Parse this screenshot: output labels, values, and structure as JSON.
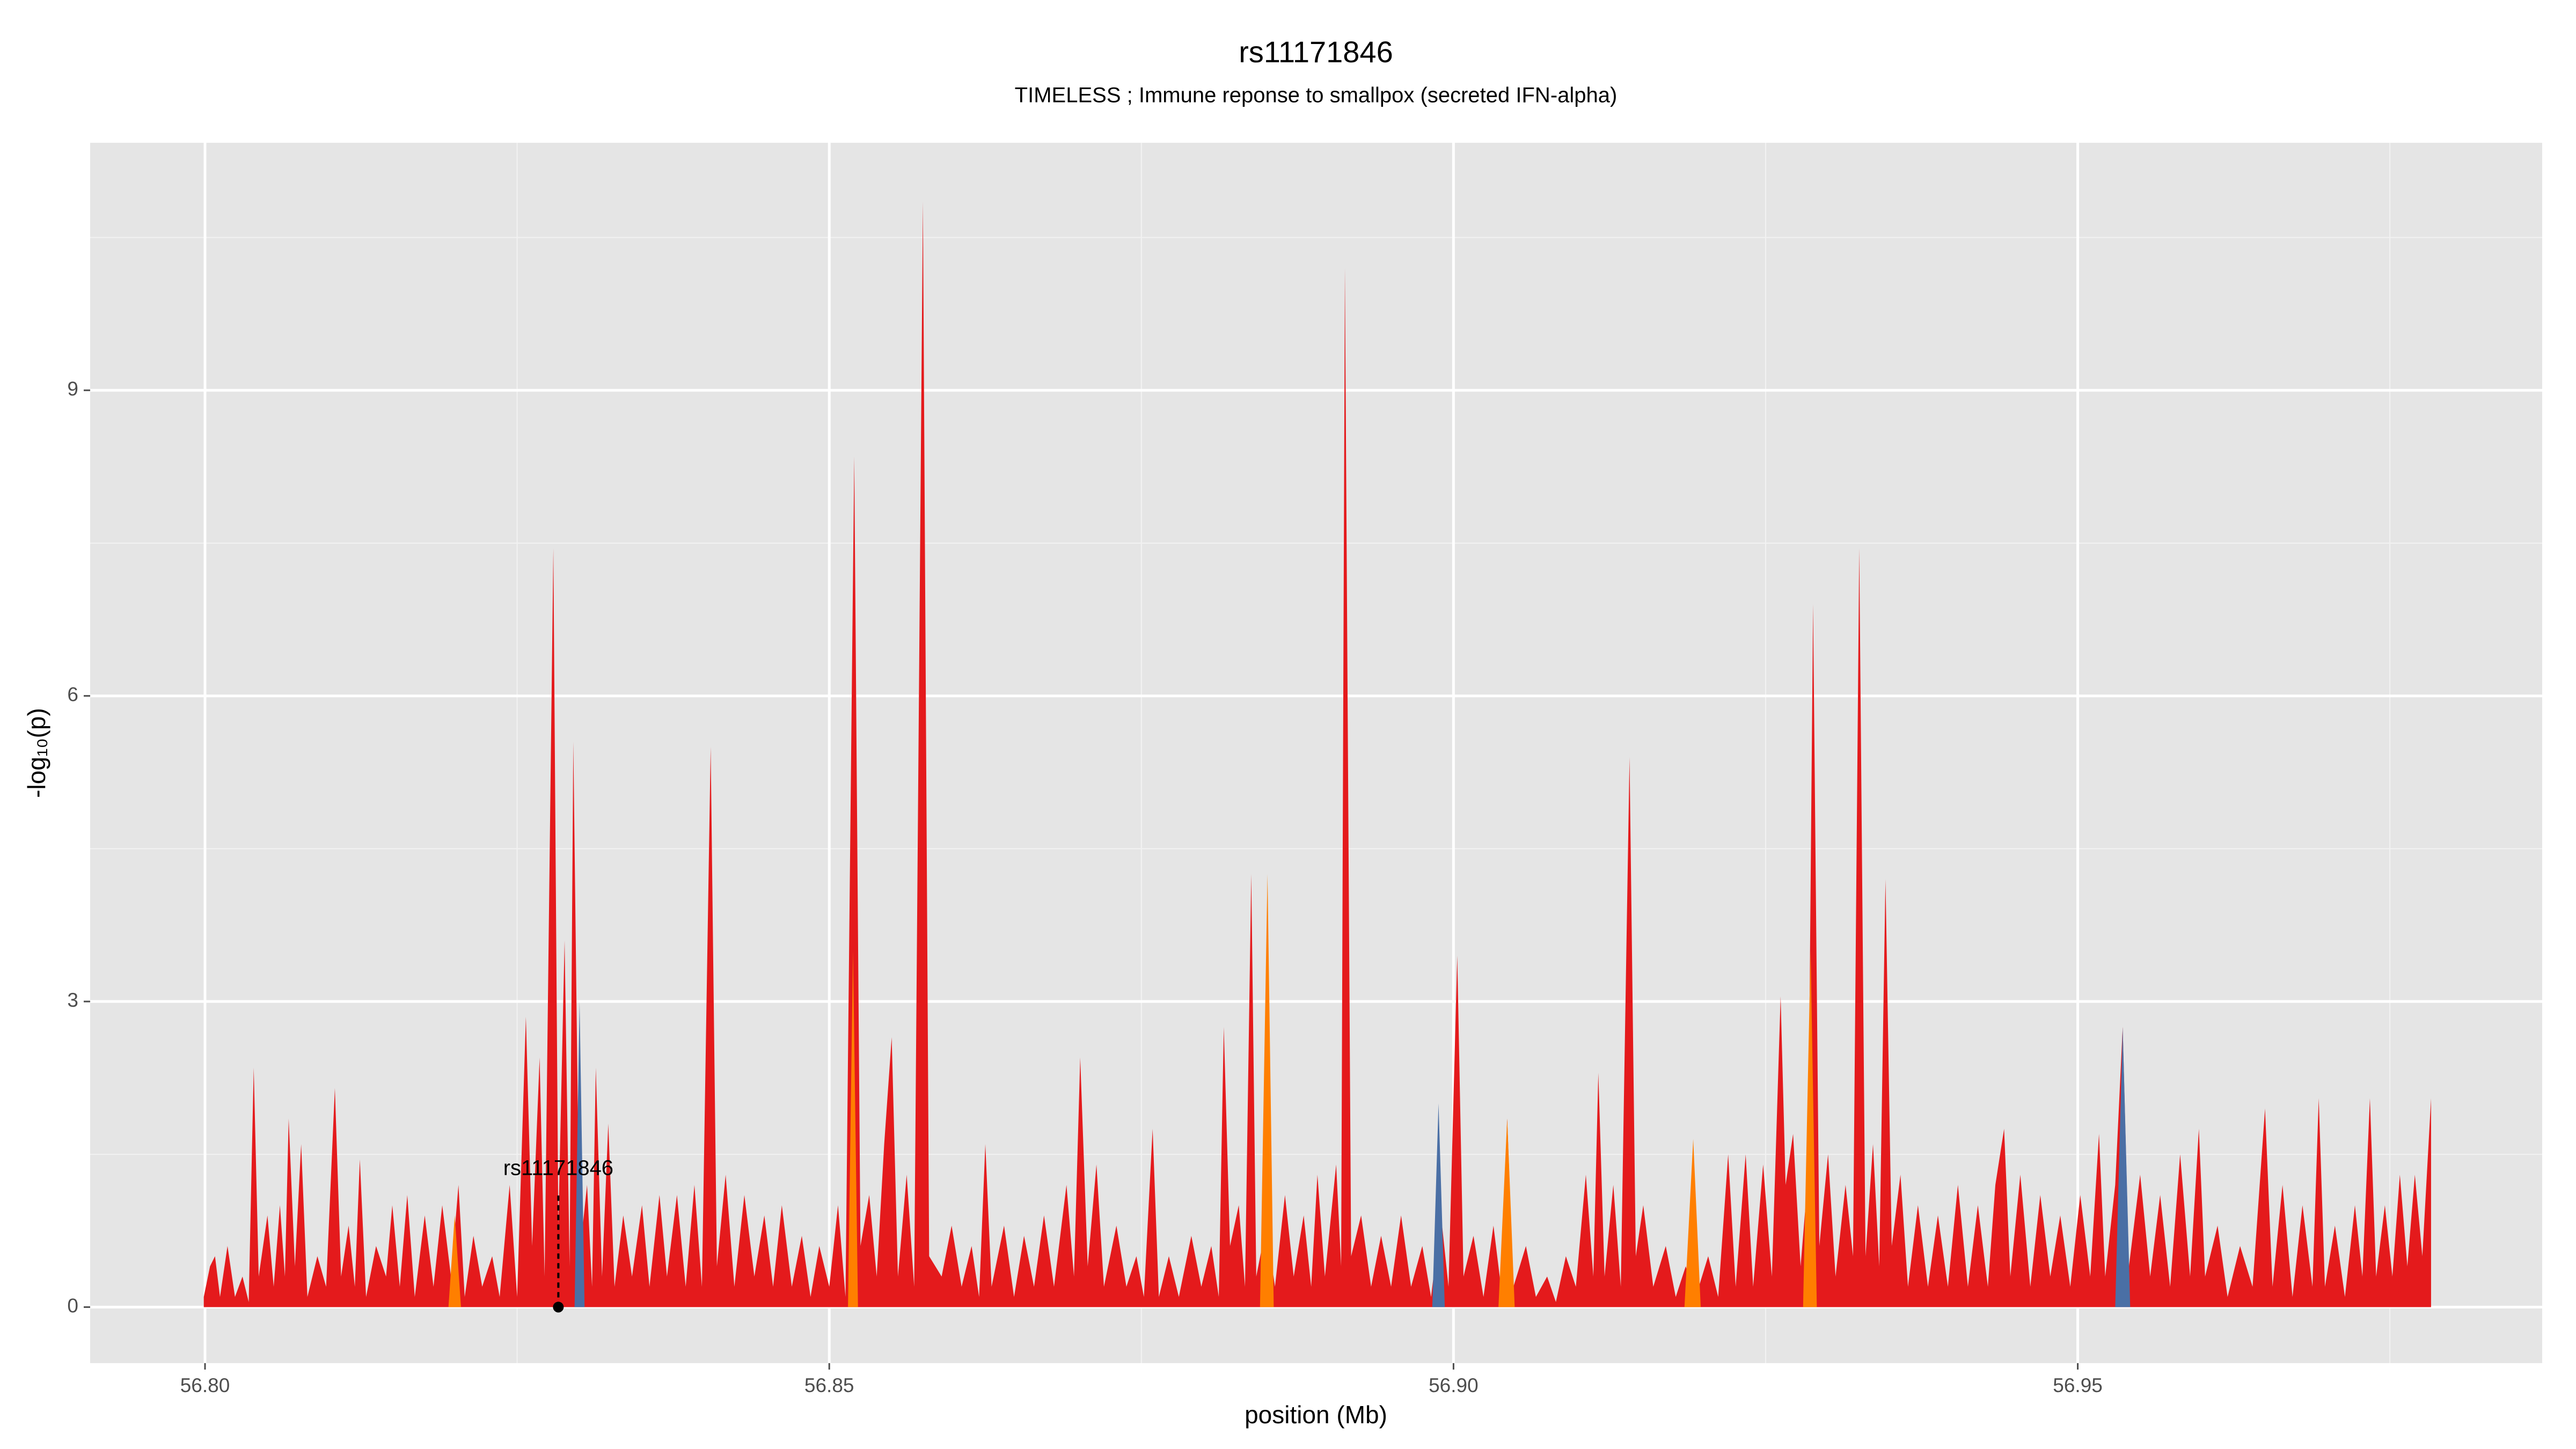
{
  "chart_data": {
    "type": "area",
    "title": "rs11171846",
    "subtitle": "TIMELESS ; Immune reponse to smallpox (secreted IFN-alpha)",
    "x_label": "position (Mb)",
    "y_label": "-log₁₀(p)",
    "xlim": [
      56.7908,
      56.9872
    ],
    "ylim": [
      -0.55,
      11.43
    ],
    "xticks": [
      {
        "value": 56.8,
        "label": "56.80"
      },
      {
        "value": 56.85,
        "label": "56.85"
      },
      {
        "value": 56.9,
        "label": "56.90"
      },
      {
        "value": 56.95,
        "label": "56.95"
      }
    ],
    "yticks": [
      0,
      3,
      6,
      9
    ],
    "grid": true,
    "minor_grid": true,
    "background": "#e5e5e5",
    "series": [
      {
        "color": "#e41a1c",
        "x": [
          56.7999,
          56.8004,
          56.8008,
          56.8012,
          56.8018,
          56.8024,
          56.803,
          56.8035,
          56.8039,
          56.8043,
          56.805,
          56.8055,
          56.806,
          56.8064,
          56.8067,
          56.8072,
          56.8077,
          56.8082,
          56.809,
          56.8097,
          56.8104,
          56.8109,
          56.8115,
          56.812,
          56.8124,
          56.8129,
          56.8137,
          56.8145,
          56.815,
          56.8156,
          56.8162,
          56.8168,
          56.8176,
          56.8183,
          56.819,
          56.8197,
          56.8203,
          56.8208,
          56.8215,
          56.8222,
          56.823,
          56.8236,
          56.8244,
          56.825,
          56.8257,
          56.8262,
          56.8268,
          56.8272,
          56.8279,
          56.8283,
          56.8288,
          56.8292,
          56.8295,
          56.83,
          56.8306,
          56.831,
          56.8313,
          56.8318,
          56.8323,
          56.8328,
          56.8335,
          56.8342,
          56.835,
          56.8356,
          56.8364,
          56.837,
          56.8378,
          56.8385,
          56.8392,
          56.8398,
          56.8405,
          56.841,
          56.8417,
          56.8424,
          56.8432,
          56.844,
          56.8448,
          56.8455,
          56.8462,
          56.847,
          56.8478,
          56.8485,
          56.8492,
          56.85,
          56.8507,
          56.8513,
          56.852,
          56.8525,
          56.8532,
          56.8538,
          56.8544,
          56.855,
          56.8555,
          56.8562,
          56.8568,
          56.8575,
          56.858,
          56.859,
          56.8598,
          56.8606,
          56.8614,
          56.862,
          56.8625,
          56.863,
          56.864,
          56.8648,
          56.8656,
          56.8664,
          56.8672,
          56.868,
          56.869,
          56.8696,
          56.8701,
          56.8707,
          56.8714,
          56.872,
          56.873,
          56.8738,
          56.8746,
          56.8752,
          56.8759,
          56.8764,
          56.8772,
          56.878,
          56.879,
          56.8798,
          56.8806,
          56.8812,
          56.8816,
          56.8821,
          56.8828,
          56.8833,
          56.8838,
          56.8842,
          56.885,
          56.8857,
          56.8865,
          56.8872,
          56.888,
          56.8886,
          56.8891,
          56.8897,
          56.8906,
          56.891,
          56.8913,
          56.8918,
          56.8926,
          56.8934,
          56.8942,
          56.895,
          56.8958,
          56.8966,
          56.8975,
          56.8982,
          56.899,
          56.8996,
          56.9003,
          56.9008,
          56.9016,
          56.9024,
          56.9032,
          56.9038,
          56.9043,
          56.9048,
          56.9058,
          56.9066,
          56.9075,
          56.9082,
          56.909,
          56.9098,
          56.9106,
          56.9112,
          56.9116,
          56.9121,
          56.9128,
          56.9134,
          56.9141,
          56.9146,
          56.9152,
          56.916,
          56.917,
          56.9178,
          56.9186,
          56.9194,
          56.9204,
          56.9212,
          56.922,
          56.9226,
          56.9234,
          56.924,
          56.9248,
          56.9255,
          56.9262,
          56.9266,
          56.9272,
          56.9278,
          56.9284,
          56.9288,
          56.9293,
          56.93,
          56.9306,
          56.9314,
          56.932,
          56.9325,
          56.933,
          56.9336,
          56.9341,
          56.9346,
          56.9351,
          56.9358,
          56.9364,
          56.9372,
          56.938,
          56.9388,
          56.9396,
          56.9404,
          56.9412,
          56.942,
          56.9428,
          56.9434,
          56.9441,
          56.9446,
          56.9454,
          56.9462,
          56.947,
          56.9478,
          56.9486,
          56.9494,
          56.9502,
          56.951,
          56.9517,
          56.9522,
          56.953,
          56.9536,
          56.9541,
          56.955,
          56.9558,
          56.9566,
          56.9574,
          56.9582,
          56.959,
          56.9597,
          56.9602,
          56.9612,
          56.962,
          56.963,
          56.964,
          56.965,
          56.9656,
          56.9664,
          56.9672,
          56.968,
          56.9688,
          56.9693,
          56.9698,
          56.9706,
          56.9714,
          56.9722,
          56.9728,
          56.9734,
          56.9739,
          56.9746,
          56.9752,
          56.9758,
          56.9764,
          56.977,
          56.9776,
          56.9783
        ],
        "values": [
          0.1,
          0.4,
          0.5,
          0.1,
          0.6,
          0.1,
          0.3,
          0.05,
          2.35,
          0.3,
          0.9,
          0.2,
          1.0,
          0.3,
          1.85,
          0.4,
          1.6,
          0.1,
          0.5,
          0.2,
          2.15,
          0.3,
          0.8,
          0.2,
          1.45,
          0.1,
          0.6,
          0.3,
          1.0,
          0.2,
          1.1,
          0.1,
          0.9,
          0.2,
          1.0,
          0.3,
          1.2,
          0.1,
          0.7,
          0.2,
          0.5,
          0.1,
          1.2,
          0.1,
          2.85,
          0.6,
          2.45,
          0.3,
          7.45,
          0.8,
          3.6,
          0.4,
          5.55,
          0.5,
          1.2,
          0.2,
          2.35,
          0.3,
          1.8,
          0.2,
          0.9,
          0.3,
          1.0,
          0.2,
          1.1,
          0.3,
          1.1,
          0.2,
          1.2,
          0.2,
          5.5,
          0.4,
          1.3,
          0.2,
          1.1,
          0.3,
          0.9,
          0.2,
          1.0,
          0.2,
          0.7,
          0.1,
          0.6,
          0.2,
          1.0,
          0.1,
          8.35,
          0.6,
          1.1,
          0.3,
          1.6,
          2.65,
          0.3,
          1.3,
          0.2,
          10.85,
          0.5,
          0.3,
          0.8,
          0.2,
          0.6,
          0.1,
          1.6,
          0.2,
          0.8,
          0.1,
          0.7,
          0.2,
          0.9,
          0.2,
          1.2,
          0.3,
          2.45,
          0.4,
          1.4,
          0.2,
          0.8,
          0.2,
          0.5,
          0.1,
          1.75,
          0.1,
          0.5,
          0.1,
          0.7,
          0.2,
          0.6,
          0.1,
          2.75,
          0.6,
          1.0,
          0.2,
          4.25,
          0.3,
          0.8,
          0.2,
          1.1,
          0.3,
          0.9,
          0.2,
          1.3,
          0.3,
          1.4,
          0.4,
          10.2,
          0.5,
          0.9,
          0.2,
          0.7,
          0.2,
          0.9,
          0.2,
          0.6,
          0.1,
          0.9,
          0.2,
          3.45,
          0.3,
          0.7,
          0.1,
          0.8,
          0.2,
          1.85,
          0.2,
          0.6,
          0.1,
          0.3,
          0.05,
          0.5,
          0.2,
          1.3,
          0.3,
          2.3,
          0.3,
          1.2,
          0.2,
          5.4,
          0.5,
          1.0,
          0.2,
          0.6,
          0.1,
          0.4,
          0.1,
          0.5,
          0.1,
          1.5,
          0.2,
          1.5,
          0.2,
          1.4,
          0.3,
          3.05,
          1.2,
          1.7,
          0.4,
          1.3,
          6.9,
          0.6,
          1.5,
          0.3,
          1.2,
          0.5,
          7.45,
          0.5,
          1.6,
          0.4,
          4.2,
          0.6,
          1.3,
          0.2,
          1.0,
          0.2,
          0.9,
          0.2,
          1.2,
          0.2,
          1.0,
          0.2,
          1.2,
          1.75,
          0.3,
          1.3,
          0.2,
          1.1,
          0.3,
          0.9,
          0.2,
          1.1,
          0.3,
          1.7,
          0.3,
          1.2,
          2.75,
          0.4,
          1.3,
          0.3,
          1.1,
          0.2,
          1.5,
          0.3,
          1.75,
          0.3,
          0.8,
          0.1,
          0.6,
          0.2,
          1.95,
          0.2,
          1.2,
          0.1,
          1.0,
          0.2,
          2.05,
          0.2,
          0.8,
          0.1,
          1.0,
          0.3,
          2.05,
          0.3,
          1.0,
          0.3,
          1.3,
          0.4,
          1.3,
          0.5,
          2.05
        ]
      },
      {
        "color": "#ff7f00",
        "x": [
          56.8195,
          56.82,
          56.8205,
          56.8515,
          56.8519,
          56.8523,
          56.8845,
          56.8851,
          56.8856,
          56.9036,
          56.9043,
          56.9049,
          56.9185,
          56.9192,
          56.9198,
          56.928,
          56.9286,
          56.9291
        ],
        "values": [
          0,
          0.9,
          0,
          0,
          3.5,
          0,
          0,
          4.25,
          0,
          0,
          1.85,
          0,
          0,
          1.65,
          0,
          0,
          3.5,
          0
        ]
      },
      {
        "color": "#4a6fa5",
        "x": [
          56.8296,
          56.83,
          56.8304,
          56.8983,
          56.8988,
          56.8993,
          56.953,
          56.9536,
          56.9542
        ],
        "values": [
          0,
          3.0,
          0,
          0,
          2.0,
          0,
          0,
          2.75,
          0
        ]
      }
    ],
    "annotation": {
      "text": "rs11171846",
      "x": 56.8283,
      "y": 0,
      "line_end": 1.1
    }
  }
}
